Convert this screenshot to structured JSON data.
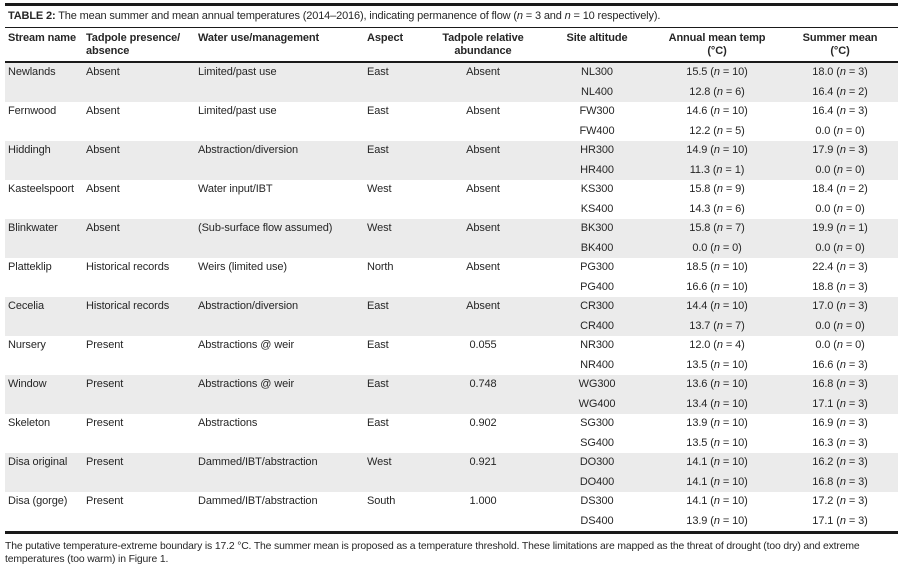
{
  "title": {
    "label": "TABLE 2:",
    "text": "The mean summer and mean annual temperatures (2014–2016), indicating permanence of flow (n = 3 and n = 10 respectively)."
  },
  "columns": [
    {
      "line1": "Stream name",
      "line2": ""
    },
    {
      "line1": "Tadpole presence/",
      "line2": "absence"
    },
    {
      "line1": "Water use/management",
      "line2": ""
    },
    {
      "line1": "Aspect",
      "line2": ""
    },
    {
      "line1": "Tadpole relative",
      "line2": "abundance"
    },
    {
      "line1": "Site altitude",
      "line2": ""
    },
    {
      "line1": "Annual mean temp",
      "line2": "(°C)"
    },
    {
      "line1": "Summer mean",
      "line2": "(°C)"
    }
  ],
  "rows": [
    {
      "stream": "Newlands",
      "presence": "Absent",
      "water": "Limited/past use",
      "aspect": "East",
      "abundance": "Absent",
      "site": "NL300",
      "annual": "15.5 (n = 10)",
      "summer": "18.0 (n = 3)"
    },
    {
      "stream": "",
      "presence": "",
      "water": "",
      "aspect": "",
      "abundance": "",
      "site": "NL400",
      "annual": "12.8 (n = 6)",
      "summer": "16.4 (n = 2)"
    },
    {
      "stream": "Fernwood",
      "presence": "Absent",
      "water": "Limited/past use",
      "aspect": "East",
      "abundance": "Absent",
      "site": "FW300",
      "annual": "14.6 (n = 10)",
      "summer": "16.4 (n = 3)"
    },
    {
      "stream": "",
      "presence": "",
      "water": "",
      "aspect": "",
      "abundance": "",
      "site": "FW400",
      "annual": "12.2 (n = 5)",
      "summer": "0.0 (n = 0)"
    },
    {
      "stream": "Hiddingh",
      "presence": "Absent",
      "water": "Abstraction/diversion",
      "aspect": "East",
      "abundance": "Absent",
      "site": "HR300",
      "annual": "14.9 (n = 10)",
      "summer": "17.9 (n = 3)"
    },
    {
      "stream": "",
      "presence": "",
      "water": "",
      "aspect": "",
      "abundance": "",
      "site": "HR400",
      "annual": "11.3 (n = 1)",
      "summer": "0.0 (n = 0)"
    },
    {
      "stream": "Kasteelspoort",
      "presence": "Absent",
      "water": "Water input/IBT",
      "aspect": "West",
      "abundance": "Absent",
      "site": "KS300",
      "annual": "15.8 (n = 9)",
      "summer": "18.4 (n = 2)"
    },
    {
      "stream": "",
      "presence": "",
      "water": "",
      "aspect": "",
      "abundance": "",
      "site": "KS400",
      "annual": "14.3 (n = 6)",
      "summer": "0.0 (n = 0)"
    },
    {
      "stream": "Blinkwater",
      "presence": "Absent",
      "water": "(Sub-surface flow assumed)",
      "aspect": "West",
      "abundance": "Absent",
      "site": "BK300",
      "annual": "15.8 (n = 7)",
      "summer": "19.9 (n = 1)"
    },
    {
      "stream": "",
      "presence": "",
      "water": "",
      "aspect": "",
      "abundance": "",
      "site": "BK400",
      "annual": "0.0 (n = 0)",
      "summer": "0.0 (n = 0)"
    },
    {
      "stream": "Platteklip",
      "presence": "Historical records",
      "water": "Weirs (limited use)",
      "aspect": "North",
      "abundance": "Absent",
      "site": "PG300",
      "annual": "18.5 (n = 10)",
      "summer": "22.4 (n = 3)"
    },
    {
      "stream": "",
      "presence": "",
      "water": "",
      "aspect": "",
      "abundance": "",
      "site": "PG400",
      "annual": "16.6 (n = 10)",
      "summer": "18.8 (n = 3)"
    },
    {
      "stream": "Cecelia",
      "presence": "Historical records",
      "water": "Abstraction/diversion",
      "aspect": "East",
      "abundance": "Absent",
      "site": "CR300",
      "annual": "14.4 (n = 10)",
      "summer": "17.0 (n = 3)"
    },
    {
      "stream": "",
      "presence": "",
      "water": "",
      "aspect": "",
      "abundance": "",
      "site": "CR400",
      "annual": "13.7 (n = 7)",
      "summer": "0.0 (n = 0)"
    },
    {
      "stream": "Nursery",
      "presence": "Present",
      "water": "Abstractions @ weir",
      "aspect": "East",
      "abundance": "0.055",
      "site": "NR300",
      "annual": "12.0 (n = 4)",
      "summer": "0.0 (n = 0)"
    },
    {
      "stream": "",
      "presence": "",
      "water": "",
      "aspect": "",
      "abundance": "",
      "site": "NR400",
      "annual": "13.5 (n = 10)",
      "summer": "16.6 (n = 3)"
    },
    {
      "stream": "Window",
      "presence": "Present",
      "water": "Abstractions @ weir",
      "aspect": "East",
      "abundance": "0.748",
      "site": "WG300",
      "annual": "13.6 (n = 10)",
      "summer": "16.8 (n = 3)"
    },
    {
      "stream": "",
      "presence": "",
      "water": "",
      "aspect": "",
      "abundance": "",
      "site": "WG400",
      "annual": "13.4 (n = 10)",
      "summer": "17.1 (n = 3)"
    },
    {
      "stream": "Skeleton",
      "presence": "Present",
      "water": "Abstractions",
      "aspect": "East",
      "abundance": "0.902",
      "site": "SG300",
      "annual": "13.9 (n = 10)",
      "summer": "16.9 (n = 3)"
    },
    {
      "stream": "",
      "presence": "",
      "water": "",
      "aspect": "",
      "abundance": "",
      "site": "SG400",
      "annual": "13.5 (n = 10)",
      "summer": "16.3 (n = 3)"
    },
    {
      "stream": "Disa original",
      "presence": "Present",
      "water": "Dammed/IBT/abstraction",
      "aspect": "West",
      "abundance": "0.921",
      "site": "DO300",
      "annual": "14.1 (n = 10)",
      "summer": "16.2 (n = 3)"
    },
    {
      "stream": "",
      "presence": "",
      "water": "",
      "aspect": "",
      "abundance": "",
      "site": "DO400",
      "annual": "14.1 (n = 10)",
      "summer": "16.8 (n = 3)"
    },
    {
      "stream": "Disa (gorge)",
      "presence": "Present",
      "water": "Dammed/IBT/abstraction",
      "aspect": "South",
      "abundance": "1.000",
      "site": "DS300",
      "annual": "14.1 (n = 10)",
      "summer": "17.2 (n = 3)"
    },
    {
      "stream": "",
      "presence": "",
      "water": "",
      "aspect": "",
      "abundance": "",
      "site": "DS400",
      "annual": "13.9 (n = 10)",
      "summer": "17.1 (n = 3)"
    }
  ],
  "colors": {
    "row_shading": "#ebebeb",
    "rule": "#1a1a1a",
    "text": "#262626"
  },
  "footnote": "The putative temperature-extreme boundary is 17.2 °C. The summer mean is proposed as a temperature threshold. These limitations are mapped as the threat of drought (too dry) and extreme temperatures (too warm) in Figure 1."
}
